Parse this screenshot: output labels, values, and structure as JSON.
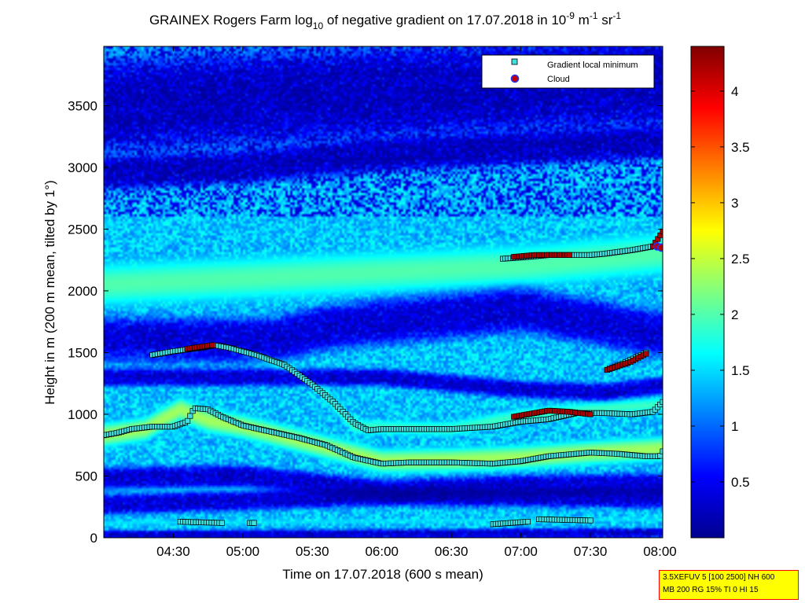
{
  "chart_data": {
    "type": "heatmap",
    "title": {
      "part1": "GRAINEX Rogers Farm log",
      "sub": "10",
      "part2": " of negative gradient on 17.07.2018 in 10",
      "sup1": "-9",
      "part3": " m",
      "sup2": "-1",
      "part4": " sr",
      "sup3": "-1"
    },
    "xlabel": "Time on 17.07.2018 (600 s mean)",
    "ylabel": "Height in m (200 m mean, tilted by 1°)",
    "x_ticks": [
      "04:30",
      "05:00",
      "05:30",
      "06:00",
      "06:30",
      "07:00",
      "07:30",
      "08:00"
    ],
    "x_tick_hours": [
      4.5,
      5.0,
      5.5,
      6.0,
      6.5,
      7.0,
      7.5,
      8.0
    ],
    "xlim_hours": [
      4.0,
      8.02
    ],
    "y_ticks": [
      "0",
      "500",
      "1000",
      "1500",
      "2000",
      "2500",
      "3000",
      "3500"
    ],
    "y_tick_values": [
      0,
      500,
      1000,
      1500,
      2000,
      2500,
      3000,
      3500
    ],
    "ylim": [
      0,
      3980
    ],
    "colorbar": {
      "ticks": [
        "0.5",
        "1",
        "1.5",
        "2",
        "2.5",
        "3",
        "3.5",
        "4"
      ],
      "tick_values": [
        0.5,
        1,
        1.5,
        2,
        2.5,
        3,
        3.5,
        4
      ],
      "range": [
        0,
        4.4
      ],
      "colormap": "jet"
    },
    "legend": {
      "placement": "top-right",
      "entries": [
        {
          "label": "Gradient local minimum",
          "marker": "square",
          "color": "#40e0e0"
        },
        {
          "label": "Cloud",
          "marker": "circle",
          "color": "#c00000",
          "edge": "#2030ff"
        }
      ]
    },
    "field": {
      "background_level": 1.4,
      "bands": [
        {
          "times": [
            4.0,
            4.3,
            4.55,
            4.75,
            5.0,
            5.5,
            6.0,
            6.5,
            7.0,
            7.5,
            8.0
          ],
          "heights": [
            830,
            880,
            1040,
            950,
            900,
            760,
            620,
            630,
            650,
            690,
            720
          ],
          "width": 150,
          "level": 2.35
        },
        {
          "times": [
            4.4,
            4.8,
            5.1,
            5.5,
            5.8,
            6.5,
            7.0,
            7.5,
            8.0
          ],
          "heights": [
            1500,
            1560,
            1480,
            1280,
            900,
            880,
            990,
            1040,
            1080
          ],
          "width": 110,
          "level": 1.9
        },
        {
          "times": [
            4.0,
            5.0,
            6.0,
            7.0,
            8.0
          ],
          "heights": [
            2050,
            2100,
            2150,
            2200,
            2300
          ],
          "width": 300,
          "level": 2.0
        },
        {
          "times": [
            6.8,
            7.2,
            7.6,
            8.0
          ],
          "heights": [
            400,
            430,
            450,
            480
          ],
          "width": 60,
          "level": 1.6
        },
        {
          "times": [
            4.0,
            8.0
          ],
          "heights": [
            120,
            150
          ],
          "width": 50,
          "level": 1.5
        }
      ],
      "voids": [
        {
          "times": [
            4.0,
            5.0,
            6.0,
            7.0,
            8.0
          ],
          "heights": [
            480,
            500,
            380,
            420,
            430
          ],
          "width": 90
        },
        {
          "times": [
            4.0,
            5.0,
            6.0,
            7.0,
            8.0
          ],
          "heights": [
            270,
            300,
            340,
            330,
            320
          ],
          "width": 80
        },
        {
          "times": [
            4.0,
            8.0
          ],
          "heights": [
            20,
            40
          ],
          "width": 40
        },
        {
          "times": [
            5.2,
            5.6,
            6.0,
            6.5,
            7.0,
            7.5,
            8.0
          ],
          "heights": [
            1600,
            1700,
            1750,
            1800,
            1850,
            1750,
            1650
          ],
          "width": 180
        },
        {
          "times": [
            6.0,
            6.5,
            7.0,
            7.6,
            8.0
          ],
          "heights": [
            1300,
            1250,
            1200,
            1180,
            1230
          ],
          "width": 70
        },
        {
          "times": [
            4.0,
            5.0,
            6.0,
            7.0,
            8.0
          ],
          "heights": [
            3500,
            3550,
            3600,
            3650,
            3700
          ],
          "width": 380
        },
        {
          "times": [
            4.0,
            5.0,
            6.0,
            7.0,
            8.0
          ],
          "heights": [
            2950,
            3000,
            3100,
            3150,
            3200
          ],
          "width": 130
        }
      ]
    },
    "gradient_minimum_series": [
      {
        "times": [
          4.0,
          4.1,
          4.2,
          4.35,
          4.5,
          4.6,
          4.65,
          4.75,
          4.85,
          5.0,
          5.2,
          5.4,
          5.6,
          5.8,
          6.0,
          6.2,
          6.5,
          6.8,
          7.0,
          7.2,
          7.5,
          7.7,
          7.9,
          8.0,
          8.02
        ],
        "heights": [
          830,
          850,
          880,
          900,
          900,
          940,
          1050,
          1040,
          980,
          910,
          860,
          810,
          750,
          650,
          600,
          610,
          610,
          600,
          620,
          660,
          690,
          680,
          660,
          660,
          700
        ]
      },
      {
        "times": [
          4.35,
          4.5,
          4.7,
          4.8,
          4.9,
          5.0,
          5.1,
          5.3,
          5.5,
          5.65,
          5.8,
          5.9,
          6.0,
          6.2,
          6.5,
          6.8,
          7.0,
          7.2,
          7.4,
          7.6,
          7.8,
          7.95,
          8.02
        ],
        "heights": [
          1480,
          1510,
          1540,
          1560,
          1540,
          1510,
          1480,
          1400,
          1240,
          1100,
          930,
          870,
          880,
          880,
          880,
          900,
          940,
          960,
          1010,
          1010,
          1000,
          1020,
          1100
        ]
      },
      {
        "times": [
          6.87,
          7.0,
          7.2,
          7.35,
          7.5,
          7.6,
          7.8,
          7.95
        ],
        "heights": [
          2260,
          2270,
          2290,
          2290,
          2290,
          2300,
          2330,
          2360
        ]
      },
      {
        "times": [
          7.62,
          7.75,
          7.9
        ],
        "heights": [
          1360,
          1420,
          1500
        ]
      },
      {
        "times": [
          4.55,
          4.85
        ],
        "heights": [
          130,
          120
        ]
      },
      {
        "times": [
          5.05,
          5.08
        ],
        "heights": [
          120,
          120
        ]
      },
      {
        "times": [
          6.8,
          7.05
        ],
        "heights": [
          110,
          130
        ]
      },
      {
        "times": [
          7.13,
          7.5
        ],
        "heights": [
          150,
          140
        ]
      }
    ],
    "cloud_series": [
      {
        "times": [
          4.6,
          4.78
        ],
        "heights": [
          1530,
          1560
        ]
      },
      {
        "times": [
          6.95,
          7.1,
          7.35
        ],
        "heights": [
          2275,
          2290,
          2290
        ]
      },
      {
        "times": [
          6.95,
          7.05,
          7.2,
          7.35,
          7.5
        ],
        "heights": [
          980,
          1000,
          1030,
          1020,
          1000
        ]
      },
      {
        "times": [
          7.62,
          7.78,
          7.9
        ],
        "heights": [
          1360,
          1420,
          1490
        ]
      },
      {
        "times": [
          7.95,
          8.02
        ],
        "heights": [
          2360,
          2480
        ]
      }
    ],
    "cloud_markers": [
      {
        "time": 7.98,
        "height": 2360
      },
      {
        "time": 8.01,
        "height": 2350
      }
    ]
  },
  "info_box": {
    "line1": "3.5XEFUV 5 [100 2500] NH 600",
    "line2": "MB 200 RG 15% TI 0 HI 15"
  }
}
